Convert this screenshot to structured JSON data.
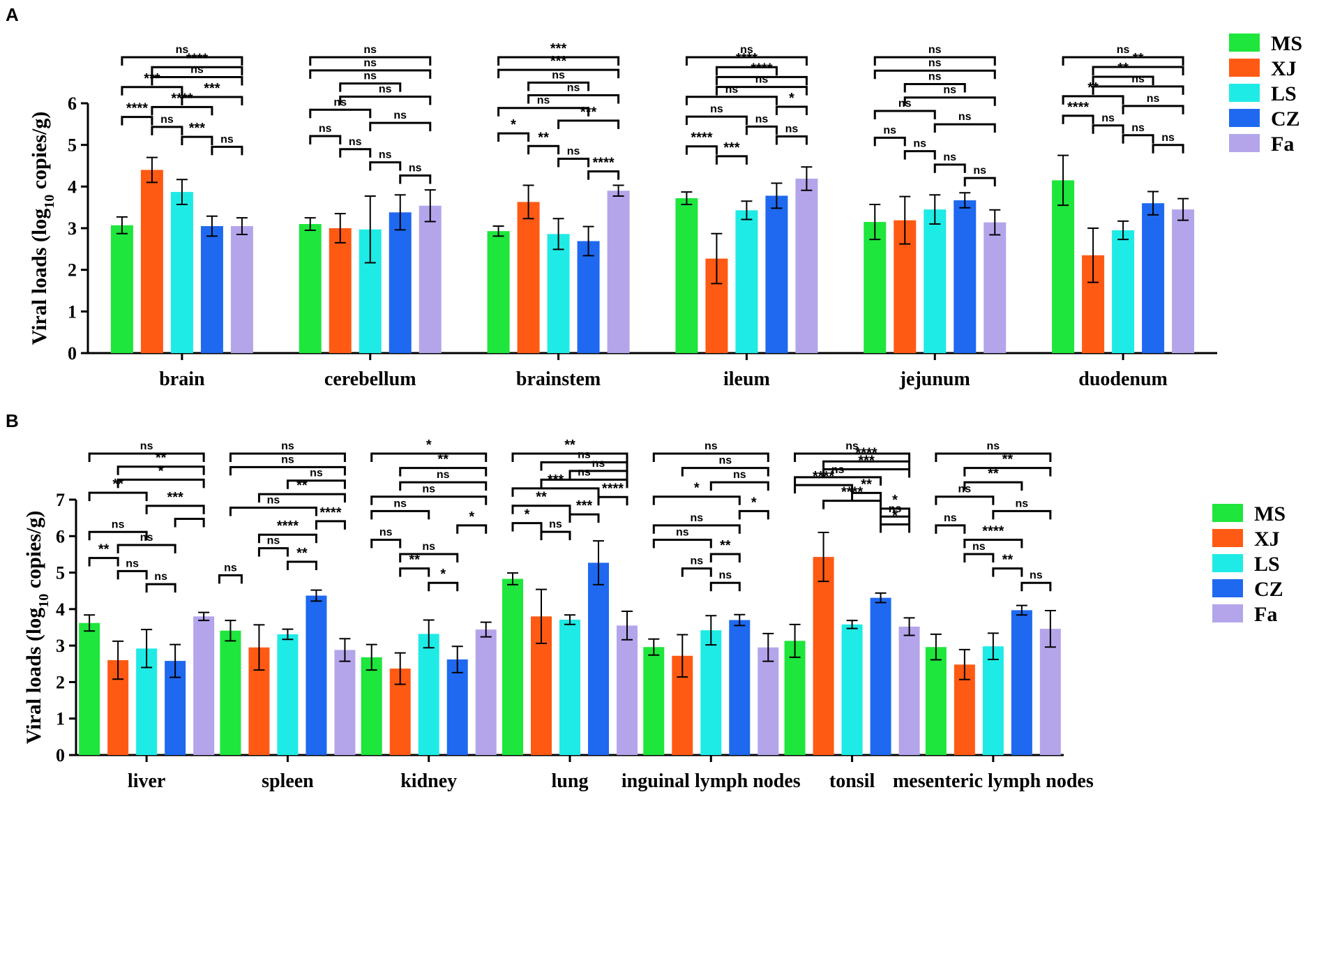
{
  "figure": {
    "panel_labels": [
      "A",
      "B"
    ]
  },
  "chart_data": [
    {
      "panel": "A",
      "type": "bar",
      "ylabel": "Viral loads (log10 copies/g)",
      "ylabel_main": "Viral loads (log",
      "ylabel_sub": "10",
      "ylabel_end": " copies/g)",
      "ylim": [
        0,
        6
      ],
      "yticks": [
        0,
        1,
        2,
        3,
        4,
        5,
        6
      ],
      "categories": [
        "brain",
        "cerebellum",
        "brainstem",
        "ileum",
        "jejunum",
        "duodenum"
      ],
      "series": [
        {
          "name": "MS",
          "color": "#1ee63c",
          "values": [
            3.07,
            3.1,
            2.93,
            3.72,
            3.15,
            4.15
          ],
          "errors": [
            0.2,
            0.15,
            0.12,
            0.15,
            0.42,
            0.6
          ]
        },
        {
          "name": "XJ",
          "color": "#ff5a14",
          "values": [
            4.4,
            3.0,
            3.63,
            2.27,
            3.19,
            2.35
          ],
          "errors": [
            0.3,
            0.35,
            0.4,
            0.6,
            0.57,
            0.65
          ]
        },
        {
          "name": "LS",
          "color": "#1eebe6",
          "values": [
            3.87,
            2.97,
            2.86,
            3.43,
            3.45,
            2.95
          ],
          "errors": [
            0.3,
            0.8,
            0.37,
            0.22,
            0.35,
            0.22
          ]
        },
        {
          "name": "CZ",
          "color": "#1e69f0",
          "values": [
            3.05,
            3.38,
            2.69,
            3.78,
            3.67,
            3.6
          ],
          "errors": [
            0.24,
            0.42,
            0.35,
            0.3,
            0.18,
            0.28
          ]
        },
        {
          "name": "Fa",
          "color": "#b4a5eb",
          "values": [
            3.05,
            3.54,
            3.9,
            4.19,
            3.14,
            3.45
          ],
          "errors": [
            0.2,
            0.38,
            0.13,
            0.28,
            0.3,
            0.26
          ]
        }
      ],
      "significance": [
        [
          {
            "a": 0,
            "b": 4,
            "label": "ns"
          },
          {
            "a": 1,
            "b": 4,
            "label": "****"
          },
          {
            "a": 1,
            "b": 4,
            "label": "ns"
          },
          {
            "a": 0,
            "b": 2,
            "label": "***"
          },
          {
            "a": 2,
            "b": 4,
            "label": "***"
          },
          {
            "a": 1,
            "b": 3,
            "label": "****"
          },
          {
            "a": 0,
            "b": 1,
            "label": "****"
          },
          {
            "a": 1,
            "b": 2,
            "label": "ns"
          },
          {
            "a": 2,
            "b": 3,
            "label": "***"
          },
          {
            "a": 3,
            "b": 4,
            "label": "ns"
          }
        ],
        [
          {
            "a": 0,
            "b": 4,
            "label": "ns"
          },
          {
            "a": 0,
            "b": 4,
            "label": "ns"
          },
          {
            "a": 1,
            "b": 3,
            "label": "ns"
          },
          {
            "a": 1,
            "b": 4,
            "label": "ns"
          },
          {
            "a": 0,
            "b": 2,
            "label": "ns"
          },
          {
            "a": 2,
            "b": 4,
            "label": "ns"
          },
          {
            "a": 0,
            "b": 1,
            "label": "ns"
          },
          {
            "a": 1,
            "b": 2,
            "label": "ns"
          },
          {
            "a": 2,
            "b": 3,
            "label": "ns"
          },
          {
            "a": 3,
            "b": 4,
            "label": "ns"
          }
        ],
        [
          {
            "a": 0,
            "b": 4,
            "label": "***"
          },
          {
            "a": 0,
            "b": 4,
            "label": "***"
          },
          {
            "a": 1,
            "b": 3,
            "label": "ns"
          },
          {
            "a": 1,
            "b": 4,
            "label": "ns"
          },
          {
            "a": 0,
            "b": 3,
            "label": "ns"
          },
          {
            "a": 2,
            "b": 4,
            "label": "***"
          },
          {
            "a": 0,
            "b": 1,
            "label": "*"
          },
          {
            "a": 1,
            "b": 2,
            "label": "**"
          },
          {
            "a": 2,
            "b": 3,
            "label": "ns"
          },
          {
            "a": 3,
            "b": 4,
            "label": "****"
          }
        ],
        [
          {
            "a": 0,
            "b": 4,
            "label": "ns"
          },
          {
            "a": 1,
            "b": 3,
            "label": "****"
          },
          {
            "a": 1,
            "b": 4,
            "label": "****"
          },
          {
            "a": 1,
            "b": 4,
            "label": "ns"
          },
          {
            "a": 0,
            "b": 3,
            "label": "ns"
          },
          {
            "a": 3,
            "b": 4,
            "label": "*"
          },
          {
            "a": 0,
            "b": 2,
            "label": "ns"
          },
          {
            "a": 2,
            "b": 3,
            "label": "ns"
          },
          {
            "a": 3,
            "b": 4,
            "label": "ns"
          },
          {
            "a": 0,
            "b": 1,
            "label": "****"
          },
          {
            "a": 1,
            "b": 2,
            "label": "***"
          }
        ],
        [
          {
            "a": 0,
            "b": 4,
            "label": "ns"
          },
          {
            "a": 0,
            "b": 4,
            "label": "ns"
          },
          {
            "a": 1,
            "b": 3,
            "label": "ns"
          },
          {
            "a": 1,
            "b": 4,
            "label": "ns"
          },
          {
            "a": 0,
            "b": 2,
            "label": "ns"
          },
          {
            "a": 2,
            "b": 4,
            "label": "ns"
          },
          {
            "a": 0,
            "b": 1,
            "label": "ns"
          },
          {
            "a": 1,
            "b": 2,
            "label": "ns"
          },
          {
            "a": 2,
            "b": 3,
            "label": "ns"
          },
          {
            "a": 3,
            "b": 4,
            "label": "ns"
          }
        ],
        [
          {
            "a": 0,
            "b": 4,
            "label": "ns"
          },
          {
            "a": 1,
            "b": 4,
            "label": "**"
          },
          {
            "a": 1,
            "b": 3,
            "label": "**"
          },
          {
            "a": 1,
            "b": 4,
            "label": "ns"
          },
          {
            "a": 0,
            "b": 2,
            "label": "**"
          },
          {
            "a": 2,
            "b": 4,
            "label": "ns"
          },
          {
            "a": 0,
            "b": 1,
            "label": "****"
          },
          {
            "a": 1,
            "b": 2,
            "label": "ns"
          },
          {
            "a": 2,
            "b": 3,
            "label": "ns"
          },
          {
            "a": 3,
            "b": 4,
            "label": "ns"
          }
        ]
      ]
    },
    {
      "panel": "B",
      "type": "bar",
      "ylabel": "Viral loads (log10 copies/g)",
      "ylabel_main": "Viral loads (log",
      "ylabel_sub": "10",
      "ylabel_end": " copies/g)",
      "ylim": [
        0,
        7
      ],
      "yticks": [
        0,
        1,
        2,
        3,
        4,
        5,
        6,
        7
      ],
      "categories": [
        "liver",
        "spleen",
        "kidney",
        "lung",
        "inguinal lymph nodes",
        "tonsil",
        "mesenteric lymph nodes"
      ],
      "series": [
        {
          "name": "MS",
          "color": "#1ee63c",
          "values": [
            3.62,
            3.41,
            2.68,
            4.83,
            2.96,
            3.13,
            2.96
          ],
          "errors": [
            0.22,
            0.28,
            0.35,
            0.16,
            0.22,
            0.45,
            0.35
          ]
        },
        {
          "name": "XJ",
          "color": "#ff5a14",
          "values": [
            2.6,
            2.95,
            2.37,
            3.8,
            2.72,
            5.43,
            2.48
          ],
          "errors": [
            0.52,
            0.62,
            0.43,
            0.74,
            0.58,
            0.67,
            0.41
          ]
        },
        {
          "name": "LS",
          "color": "#1eebe6",
          "values": [
            2.92,
            3.31,
            3.32,
            3.71,
            3.42,
            3.58,
            2.98
          ],
          "errors": [
            0.52,
            0.14,
            0.38,
            0.13,
            0.4,
            0.11,
            0.36
          ]
        },
        {
          "name": "CZ",
          "color": "#1e69f0",
          "values": [
            2.58,
            4.37,
            2.62,
            5.27,
            3.7,
            4.31,
            3.97
          ],
          "errors": [
            0.45,
            0.15,
            0.36,
            0.6,
            0.15,
            0.13,
            0.13
          ]
        },
        {
          "name": "Fa",
          "color": "#b4a5eb",
          "values": [
            3.8,
            2.88,
            3.44,
            3.55,
            2.95,
            3.52,
            3.46
          ],
          "errors": [
            0.11,
            0.31,
            0.2,
            0.39,
            0.38,
            0.24,
            0.5
          ]
        }
      ],
      "significance": [
        [
          {
            "a": 0,
            "b": 4,
            "label": "ns"
          },
          {
            "a": 1,
            "b": 4,
            "label": "**"
          },
          {
            "a": 1,
            "b": 4,
            "label": "*"
          },
          {
            "a": 0,
            "b": 2,
            "label": "**"
          },
          {
            "a": 2,
            "b": 4,
            "label": "***"
          },
          {
            "a": 3,
            "b": 4,
            "label": ""
          },
          {
            "a": 0,
            "b": 2,
            "label": "ns"
          },
          {
            "a": 1,
            "b": 3,
            "label": "ns"
          },
          {
            "a": 0,
            "b": 1,
            "label": "**"
          },
          {
            "a": 1,
            "b": 2,
            "label": "ns"
          },
          {
            "a": 2,
            "b": 3,
            "label": "ns"
          }
        ],
        [
          {
            "a": 0,
            "b": 4,
            "label": "ns"
          },
          {
            "a": 0,
            "b": 4,
            "label": "ns"
          },
          {
            "a": 2,
            "b": 4,
            "label": "ns"
          },
          {
            "a": 1,
            "b": 4,
            "label": "**"
          },
          {
            "a": 0,
            "b": 3,
            "label": "ns"
          },
          {
            "a": 3,
            "b": 4,
            "label": "****"
          },
          {
            "a": 1,
            "b": 3,
            "label": "****"
          },
          {
            "a": 1,
            "b": 2,
            "label": "ns"
          },
          {
            "a": 2,
            "b": 3,
            "label": "**"
          },
          {
            "a": 0,
            "b": 0,
            "label": "ns"
          }
        ],
        [
          {
            "a": 0,
            "b": 4,
            "label": "*"
          },
          {
            "a": 1,
            "b": 4,
            "label": "**"
          },
          {
            "a": 1,
            "b": 4,
            "label": "ns"
          },
          {
            "a": 0,
            "b": 4,
            "label": "ns"
          },
          {
            "a": 0,
            "b": 2,
            "label": "ns"
          },
          {
            "a": 3,
            "b": 4,
            "label": "*"
          },
          {
            "a": 0,
            "b": 1,
            "label": "ns"
          },
          {
            "a": 1,
            "b": 3,
            "label": "ns"
          },
          {
            "a": 1,
            "b": 2,
            "label": "**"
          },
          {
            "a": 2,
            "b": 3,
            "label": "*"
          }
        ],
        [
          {
            "a": 0,
            "b": 4,
            "label": "**"
          },
          {
            "a": 1,
            "b": 4,
            "label": "ns"
          },
          {
            "a": 2,
            "b": 4,
            "label": "ns"
          },
          {
            "a": 1,
            "b": 4,
            "label": "ns"
          },
          {
            "a": 0,
            "b": 3,
            "label": "***"
          },
          {
            "a": 3,
            "b": 4,
            "label": "****"
          },
          {
            "a": 0,
            "b": 2,
            "label": "**"
          },
          {
            "a": 2,
            "b": 3,
            "label": "***"
          },
          {
            "a": 0,
            "b": 1,
            "label": "*"
          },
          {
            "a": 1,
            "b": 2,
            "label": "ns"
          }
        ],
        [
          {
            "a": 0,
            "b": 4,
            "label": "ns"
          },
          {
            "a": 1,
            "b": 4,
            "label": "ns"
          },
          {
            "a": 2,
            "b": 4,
            "label": "ns"
          },
          {
            "a": 0,
            "b": 3,
            "label": "*"
          },
          {
            "a": 3,
            "b": 4,
            "label": "*"
          },
          {
            "a": 0,
            "b": 3,
            "label": "ns"
          },
          {
            "a": 0,
            "b": 2,
            "label": "ns"
          },
          {
            "a": 2,
            "b": 3,
            "label": "**"
          },
          {
            "a": 1,
            "b": 2,
            "label": "ns"
          },
          {
            "a": 2,
            "b": 3,
            "label": "ns"
          }
        ],
        [
          {
            "a": 0,
            "b": 4,
            "label": "ns"
          },
          {
            "a": 1,
            "b": 4,
            "label": "****"
          },
          {
            "a": 1,
            "b": 4,
            "label": "***"
          },
          {
            "a": 0,
            "b": 3,
            "label": "ns"
          },
          {
            "a": 0,
            "b": 2,
            "label": "****"
          },
          {
            "a": 2,
            "b": 3,
            "label": "**"
          },
          {
            "a": 1,
            "b": 3,
            "label": "****"
          },
          {
            "a": 3,
            "b": 4,
            "label": "*"
          },
          {
            "a": 3,
            "b": 4,
            "label": "ns"
          },
          {
            "a": 3,
            "b": 4,
            "label": "*"
          }
        ],
        [
          {
            "a": 0,
            "b": 4,
            "label": "ns"
          },
          {
            "a": 1,
            "b": 4,
            "label": "**"
          },
          {
            "a": 1,
            "b": 3,
            "label": "**"
          },
          {
            "a": 0,
            "b": 2,
            "label": "ns"
          },
          {
            "a": 2,
            "b": 4,
            "label": "ns"
          },
          {
            "a": 0,
            "b": 1,
            "label": "ns"
          },
          {
            "a": 1,
            "b": 3,
            "label": "****"
          },
          {
            "a": 1,
            "b": 2,
            "label": "ns"
          },
          {
            "a": 2,
            "b": 3,
            "label": "**"
          },
          {
            "a": 3,
            "b": 4,
            "label": "ns"
          }
        ]
      ]
    }
  ]
}
